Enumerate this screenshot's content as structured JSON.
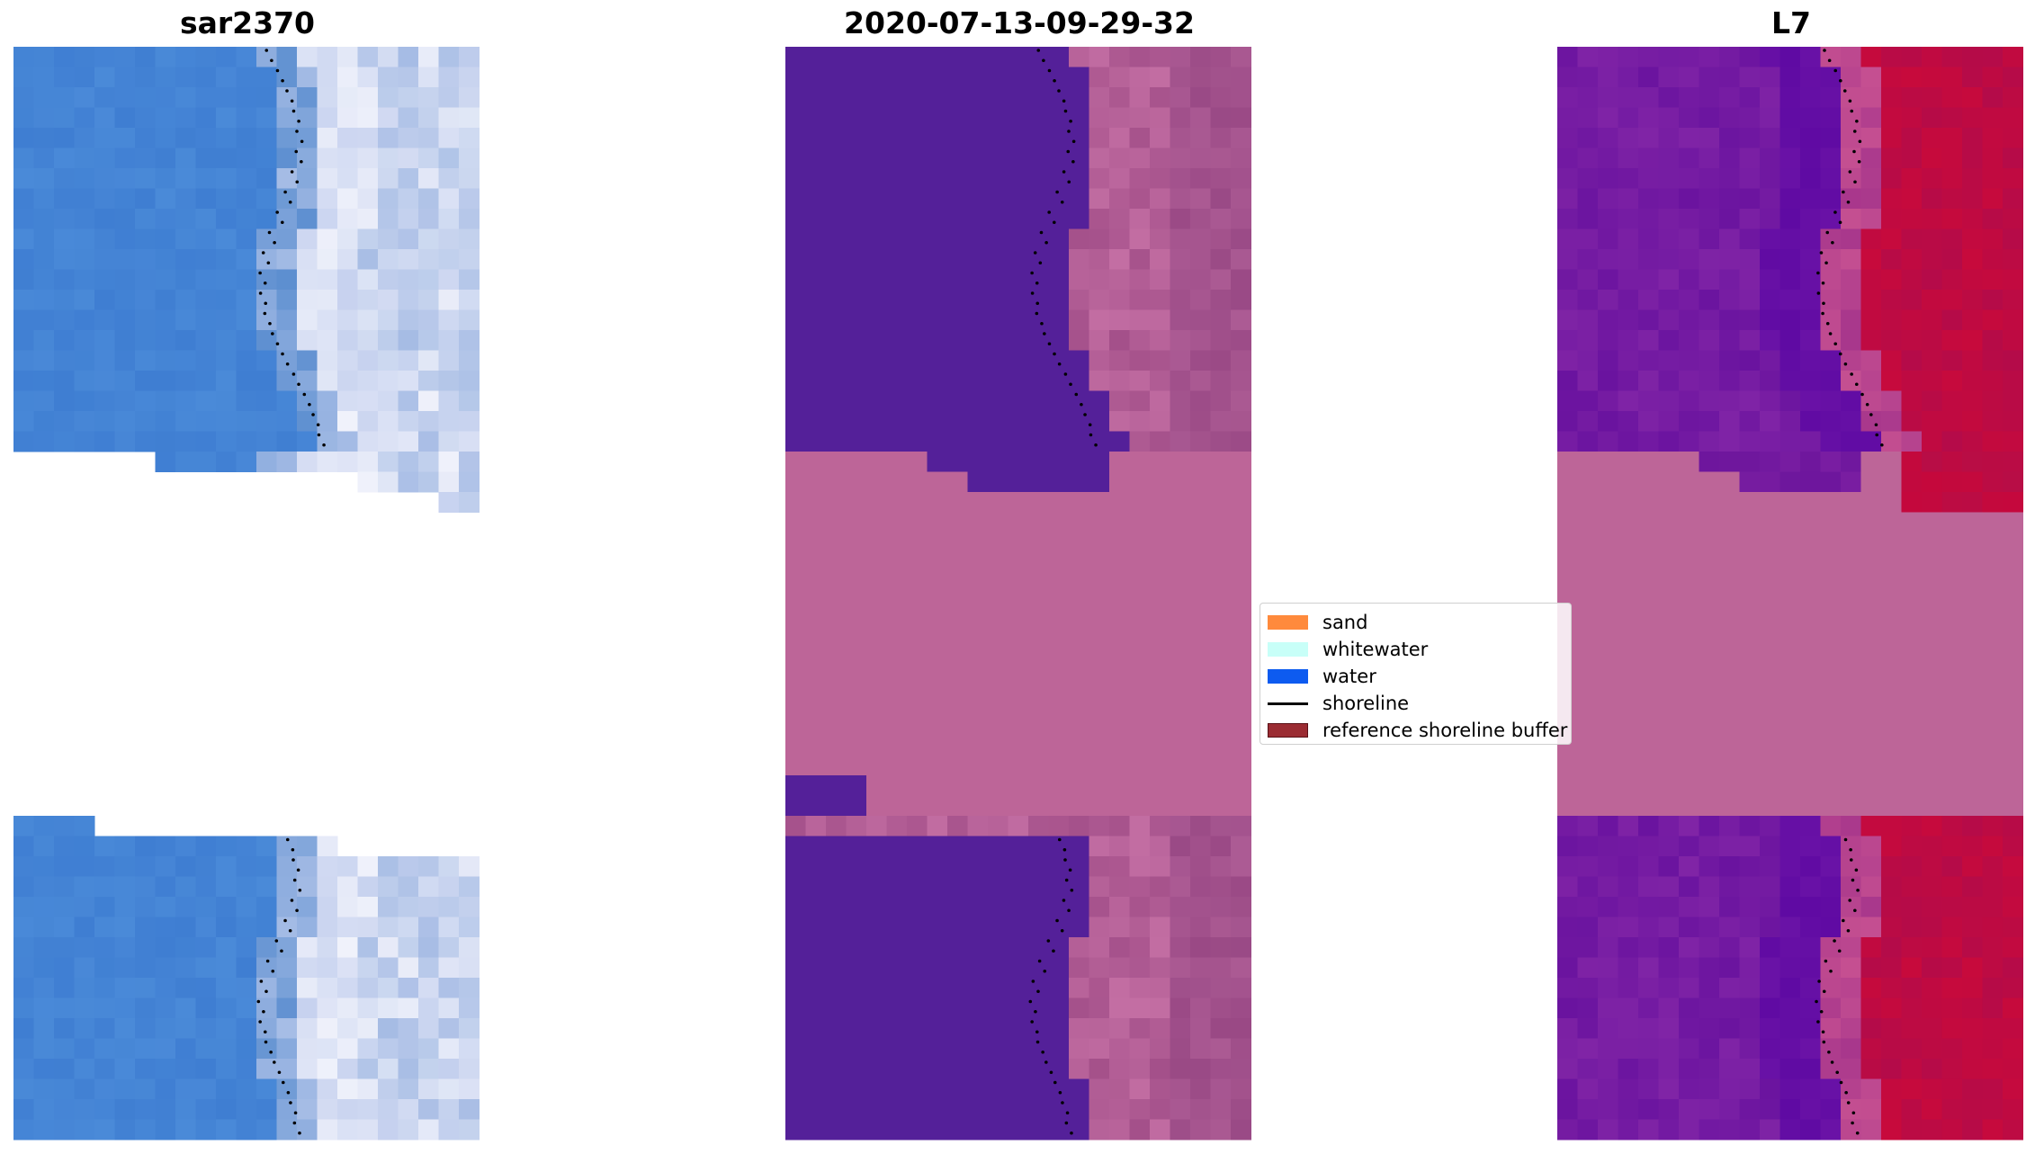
{
  "panels": [
    {
      "title": "sar2370",
      "kind": "rgb"
    },
    {
      "title": "2020-07-13-09-29-32",
      "kind": "classified"
    },
    {
      "title": "L7",
      "kind": "index"
    }
  ],
  "legend": {
    "items": [
      {
        "label": "sand",
        "color": "#ff8a3c",
        "type": "patch"
      },
      {
        "label": "whitewater",
        "color": "#c8fff8",
        "type": "patch"
      },
      {
        "label": "water",
        "color": "#0d5bf0",
        "type": "patch"
      },
      {
        "label": "shoreline",
        "color": "#000000",
        "type": "line"
      },
      {
        "label": "reference shoreline buffer",
        "color": "#9b2c33",
        "type": "patch"
      }
    ]
  },
  "colors": {
    "nodata_pink": "#bd6598",
    "water_purple": "#542099",
    "rgb_blue": "#3f7ed2",
    "l7_red": "#c20a3a"
  }
}
